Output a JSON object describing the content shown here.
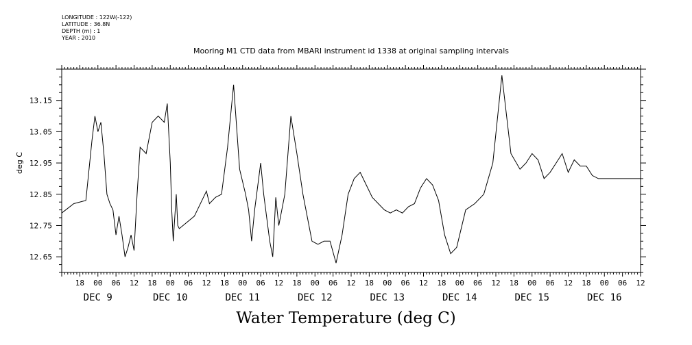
{
  "meta": {
    "longitude": "LONGITUDE : 122W(-122)",
    "latitude": "LATITUDE : 36.8N",
    "depth": "DEPTH (m) : 1",
    "year": "YEAR : 2010"
  },
  "chart_data": {
    "type": "line",
    "title": "Mooring M1 CTD data from MBARI instrument id 1338 at original sampling intervals",
    "xlabel": "Water Temperature (deg C)",
    "ylabel": "deg C",
    "xlim": [
      "2010-12-08T12:00",
      "2010-12-16T12:00"
    ],
    "ylim": [
      12.6,
      13.25
    ],
    "yticks": [
      "12.65",
      "12.75",
      "12.85",
      "12.95",
      "13.05",
      "13.15"
    ],
    "xticks_hours": [
      "18",
      "00",
      "06",
      "12",
      "18",
      "00",
      "06",
      "12",
      "18",
      "00",
      "06",
      "12",
      "18",
      "00",
      "06",
      "12",
      "18",
      "00",
      "06",
      "12",
      "18",
      "00",
      "06",
      "12",
      "18",
      "00",
      "06",
      "12",
      "18",
      "00",
      "06",
      "12"
    ],
    "xticks_days": [
      "DEC  9",
      "DEC 10",
      "DEC 11",
      "DEC 12",
      "DEC 13",
      "DEC 14",
      "DEC 15",
      "DEC 16"
    ],
    "x": [
      "12-08 12:00",
      "12-08 16:00",
      "12-08 20:00",
      "12-08 22:00",
      "12-08 23:00",
      "12-09 00:00",
      "12-09 01:00",
      "12-09 02:00",
      "12-09 03:00",
      "12-09 04:00",
      "12-09 05:00",
      "12-09 06:00",
      "12-09 07:00",
      "12-09 08:00",
      "12-09 09:00",
      "12-09 10:00",
      "12-09 11:00",
      "12-09 12:00",
      "12-09 13:00",
      "12-09 14:00",
      "12-09 16:00",
      "12-09 18:00",
      "12-09 20:00",
      "12-09 22:00",
      "12-09 23:00",
      "12-10 00:00",
      "12-10 00:30",
      "12-10 01:00",
      "12-10 02:00",
      "12-10 02:30",
      "12-10 03:00",
      "12-10 08:00",
      "12-10 12:00",
      "12-10 13:00",
      "12-10 15:00",
      "12-10 17:00",
      "12-10 19:00",
      "12-10 21:00",
      "12-10 23:00",
      "12-11 01:00",
      "12-11 02:00",
      "12-11 03:00",
      "12-11 04:00",
      "12-11 06:00",
      "12-11 07:00",
      "12-11 09:00",
      "12-11 10:00",
      "12-11 11:00",
      "12-11 12:00",
      "12-11 14:00",
      "12-11 16:00",
      "12-11 18:00",
      "12-11 20:00",
      "12-11 22:00",
      "12-11 23:00",
      "12-12 01:00",
      "12-12 03:00",
      "12-12 05:00",
      "12-12 07:00",
      "12-12 09:00",
      "12-12 11:00",
      "12-12 13:00",
      "12-12 15:00",
      "12-12 17:00",
      "12-12 19:00",
      "12-12 21:00",
      "12-12 23:00",
      "12-13 01:00",
      "12-13 03:00",
      "12-13 05:00",
      "12-13 07:00",
      "12-13 09:00",
      "12-13 11:00",
      "12-13 13:00",
      "12-13 15:00",
      "12-13 17:00",
      "12-13 19:00",
      "12-13 21:00",
      "12-13 23:00",
      "12-14 02:00",
      "12-14 05:00",
      "12-14 08:00",
      "12-14 11:00",
      "12-14 14:00",
      "12-14 17:00",
      "12-14 20:00",
      "12-14 22:00",
      "12-15 00:00",
      "12-15 02:00",
      "12-15 04:00",
      "12-15 06:00",
      "12-15 08:00",
      "12-15 10:00",
      "12-15 12:00",
      "12-15 14:00",
      "12-15 16:00",
      "12-15 18:00",
      "12-15 20:00",
      "12-15 22:00",
      "12-15 23:00",
      "12-16 01:00",
      "12-16 03:00",
      "12-16 05:00",
      "12-16 07:00",
      "12-16 09:00",
      "12-16 11:00",
      "12-16 12:00"
    ],
    "values": [
      12.79,
      12.82,
      12.83,
      13.02,
      13.1,
      13.05,
      13.08,
      12.98,
      12.85,
      12.82,
      12.8,
      12.72,
      12.78,
      12.72,
      12.65,
      12.68,
      12.72,
      12.67,
      12.85,
      13.0,
      12.98,
      13.08,
      13.1,
      13.08,
      13.14,
      12.95,
      12.8,
      12.7,
      12.85,
      12.75,
      12.74,
      12.78,
      12.86,
      12.82,
      12.84,
      12.85,
      13.0,
      13.2,
      12.93,
      12.85,
      12.8,
      12.7,
      12.8,
      12.95,
      12.85,
      12.7,
      12.65,
      12.84,
      12.75,
      12.85,
      13.1,
      12.98,
      12.85,
      12.75,
      12.7,
      12.69,
      12.7,
      12.7,
      12.63,
      12.72,
      12.85,
      12.9,
      12.92,
      12.88,
      12.84,
      12.82,
      12.8,
      12.79,
      12.8,
      12.79,
      12.81,
      12.82,
      12.87,
      12.9,
      12.88,
      12.83,
      12.72,
      12.66,
      12.68,
      12.8,
      12.82,
      12.85,
      12.95,
      13.23,
      12.98,
      12.93,
      12.95,
      12.98,
      12.96,
      12.9,
      12.92,
      12.95,
      12.98,
      12.92,
      12.96,
      12.94,
      12.94,
      12.91,
      12.9,
      12.9,
      12.9,
      12.9,
      12.9,
      12.9,
      12.9,
      12.9,
      12.9
    ]
  }
}
